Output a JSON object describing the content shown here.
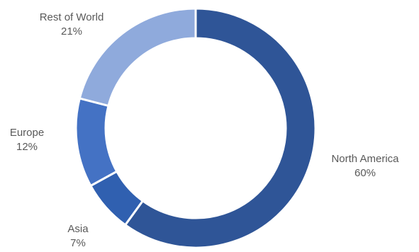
{
  "chart_data": {
    "type": "pie",
    "donut": true,
    "title": "",
    "legend": "none",
    "slices": [
      {
        "label": "North America",
        "value": 60,
        "value_label": "60%",
        "color": "#2f5597"
      },
      {
        "label": "Asia",
        "value": 7,
        "value_label": "7%",
        "color": "#3060b0"
      },
      {
        "label": "Europe",
        "value": 12,
        "value_label": "12%",
        "color": "#4472c4"
      },
      {
        "label": "Rest of World",
        "value": 21,
        "value_label": "21%",
        "color": "#8faadc"
      }
    ]
  }
}
